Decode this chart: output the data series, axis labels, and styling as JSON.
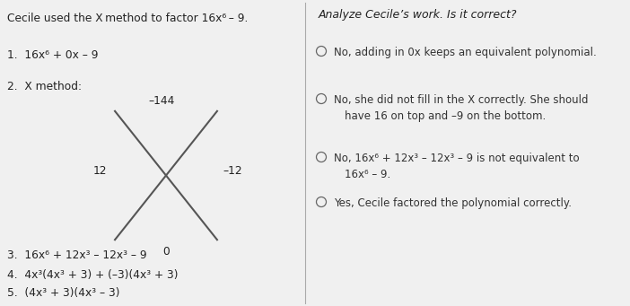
{
  "bg_color": "#f0f0f0",
  "dark_color": "#222222",
  "text_color": "#333333",
  "circle_color": "#666666",
  "line_color": "#555555",
  "divider_color": "#aaaaaa",
  "left_title": "Cecile used the X method to factor 16x⁶ – 9.",
  "step1": "1.  16x⁶ + 0x – 9",
  "step2": "2.  X method:",
  "x_top": "–144",
  "x_left": "12",
  "x_right": "–12",
  "x_bottom": "0",
  "step3": "3.  16x⁶ + 12x³ – 12x³ – 9",
  "step4": "4.  4x³(4x³ + 3) + (–3)(4x³ + 3)",
  "step5": "5.  (4x³ + 3)(4x³ – 3)",
  "right_title": "Analyze Cecile’s work. Is it correct?",
  "opt1": "No, adding in 0x keeps an equivalent polynomial.",
  "opt2a": "No, she did not fill in the X correctly. She should",
  "opt2b": "have 16 on top and –9 on the bottom.",
  "opt3a": "No, 16x⁶ + 12x³ – 12x³ – 9 is not equivalent to",
  "opt3b": "16x⁶ – 9.",
  "opt4": "Yes, Cecile factored the polynomial correctly."
}
